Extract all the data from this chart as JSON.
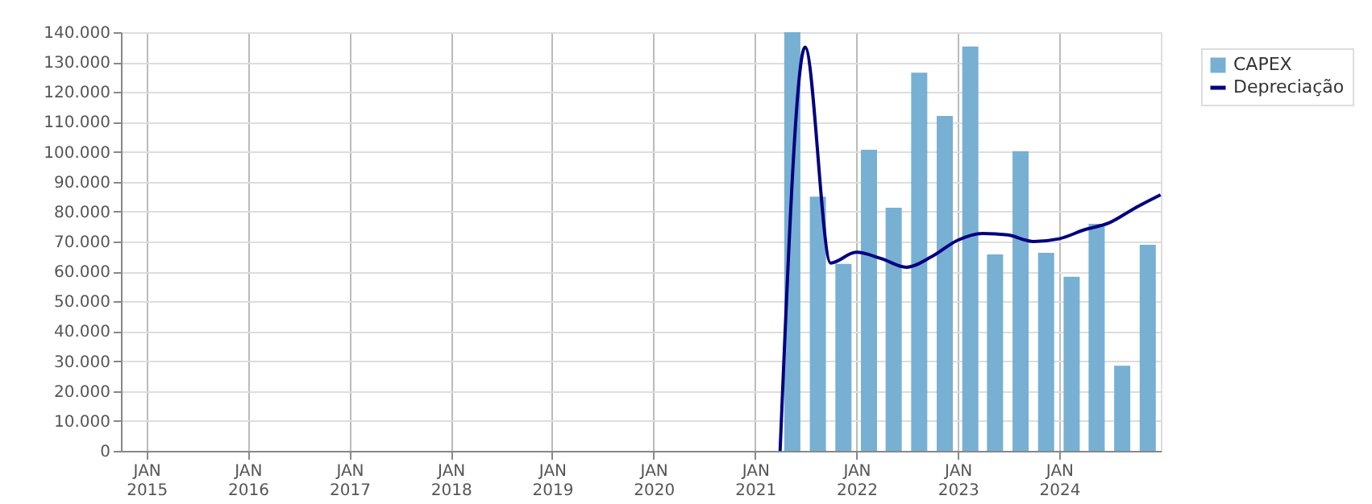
{
  "chart_data": {
    "type": "bar",
    "legend": "top right",
    "grid": true,
    "xlim": [
      "2014-10-01",
      "2025-01-01"
    ],
    "xticks": [
      {
        "value": "2015-01-01",
        "label": "JAN\n2015"
      },
      {
        "value": "2016-01-01",
        "label": "JAN\n2016"
      },
      {
        "value": "2017-01-01",
        "label": "JAN\n2017"
      },
      {
        "value": "2018-01-01",
        "label": "JAN\n2018"
      },
      {
        "value": "2019-01-01",
        "label": "JAN\n2019"
      },
      {
        "value": "2020-01-01",
        "label": "JAN\n2020"
      },
      {
        "value": "2021-01-01",
        "label": "JAN\n2021"
      },
      {
        "value": "2022-01-01",
        "label": "JAN\n2022"
      },
      {
        "value": "2023-01-01",
        "label": "JAN\n2023"
      },
      {
        "value": "2024-01-01",
        "label": "JAN\n2024"
      }
    ],
    "ylim": [
      0,
      140000
    ],
    "yticks": [
      0,
      {
        "value": 10000,
        "label": "10.000"
      },
      {
        "value": 20000,
        "label": "20.000"
      },
      {
        "value": 30000,
        "label": "30.000"
      },
      {
        "value": 40000,
        "label": "40.000"
      },
      {
        "value": 50000,
        "label": "50.000"
      },
      {
        "value": 60000,
        "label": "60.000"
      },
      {
        "value": 70000,
        "label": "70.000"
      },
      {
        "value": 80000,
        "label": "80.000"
      },
      {
        "value": 90000,
        "label": "90.000"
      },
      {
        "value": 100000,
        "label": "100.000"
      },
      {
        "value": 110000,
        "label": "110.000"
      },
      {
        "value": 120000,
        "label": "120.000"
      },
      {
        "value": 130000,
        "label": "130.000"
      },
      {
        "value": 140000,
        "label": "140.000"
      }
    ],
    "series": [
      {
        "name": "CAPEX",
        "color": "#77b0d3",
        "x": [
          "2021-05-15",
          "2021-08-15",
          "2021-11-15",
          "2022-02-15",
          "2022-05-15",
          "2022-08-15",
          "2022-11-15",
          "2023-02-15",
          "2023-05-15",
          "2023-08-15",
          "2023-11-15",
          "2024-02-15",
          "2024-05-15",
          "2024-08-15",
          "2024-11-15"
        ],
        "values": [
          140000,
          85000,
          62500,
          100700,
          81300,
          126500,
          112000,
          135200,
          65700,
          100200,
          66200,
          58200,
          75900,
          28500,
          68900
        ]
      },
      {
        "name": "Depreciação",
        "type": "line",
        "color": "#000080",
        "x": [
          "2021-04-01",
          "2021-06-30",
          "2021-09-30",
          "2021-12-31",
          "2022-03-31",
          "2022-06-30",
          "2022-09-30",
          "2022-12-31",
          "2023-03-31",
          "2023-06-30",
          "2023-09-30",
          "2023-12-31",
          "2024-03-31",
          "2024-06-30",
          "2024-09-30",
          "2024-12-31"
        ],
        "values": [
          0,
          135000,
          62800,
          66400,
          64300,
          61400,
          65000,
          70400,
          72700,
          72200,
          70000,
          70900,
          73900,
          76300,
          81200,
          85600
        ]
      }
    ]
  }
}
